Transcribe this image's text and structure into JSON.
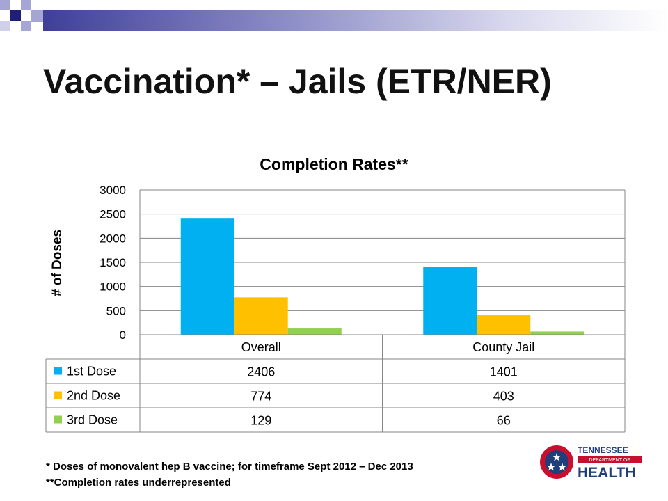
{
  "slide": {
    "title": "Vaccination* – Jails (ETR/NER)",
    "footnote1": "* Doses of monovalent hep B vaccine; for timeframe Sept 2012 – Dec 2013",
    "footnote2": "**Completion rates underrepresented"
  },
  "logo": {
    "line1": "TENNESSEE",
    "line2": "DEPARTMENT OF",
    "line3": "HEALTH",
    "icon": "tennessee-tristar-logo"
  },
  "colors": {
    "header_dark": "#3f3f9a",
    "header_light": "#a6a6d6",
    "logo_red": "#c8102e",
    "logo_blue": "#1f3e7a"
  },
  "chart_data": {
    "type": "bar",
    "title": "Completion Rates**",
    "ylabel": "# of Doses",
    "xlabel": "",
    "categories": [
      "Overall",
      "County Jail"
    ],
    "series": [
      {
        "name": "1st Dose",
        "values": [
          2406,
          1401
        ],
        "color": "#00b0f0"
      },
      {
        "name": "2nd Dose",
        "values": [
          774,
          403
        ],
        "color": "#ffc000"
      },
      {
        "name": "3rd Dose",
        "values": [
          129,
          66
        ],
        "color": "#92d050"
      }
    ],
    "ylim": [
      0,
      3000
    ],
    "yticks": [
      0,
      500,
      1000,
      1500,
      2000,
      2500,
      3000
    ],
    "grid": true,
    "legend": "data-table-below"
  }
}
